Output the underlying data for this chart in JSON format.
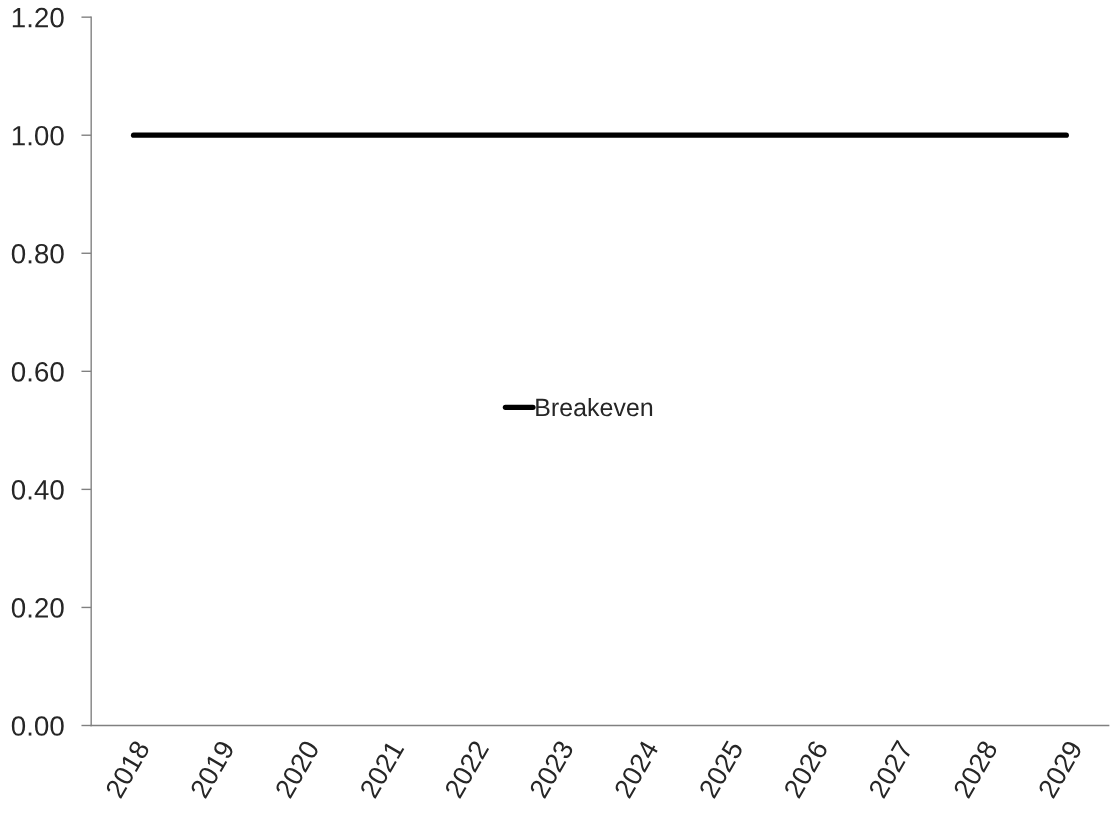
{
  "chart_data": {
    "type": "line",
    "categories": [
      "2018",
      "2019",
      "2020",
      "2021",
      "2022",
      "2023",
      "2024",
      "2025",
      "2026",
      "2027",
      "2028",
      "2029"
    ],
    "series": [
      {
        "name": "Breakeven",
        "color": "#000000",
        "values": [
          1.0,
          1.0,
          1.0,
          1.0,
          1.0,
          1.0,
          1.0,
          1.0,
          1.0,
          1.0,
          1.0,
          1.0
        ]
      }
    ],
    "ylim": [
      0,
      1.2
    ],
    "yticks": [
      {
        "value": 0,
        "label": "0.00"
      },
      {
        "value": 0.2,
        "label": "0.20"
      },
      {
        "value": 0.4,
        "label": "0.40"
      },
      {
        "value": 0.6,
        "label": "0.60"
      },
      {
        "value": 0.8,
        "label": "0.80"
      },
      {
        "value": 1.0,
        "label": "1.00"
      },
      {
        "value": 1.2,
        "label": "1.20"
      }
    ],
    "grid": false,
    "legend": "center",
    "marker": "none",
    "line_style": "solid"
  }
}
